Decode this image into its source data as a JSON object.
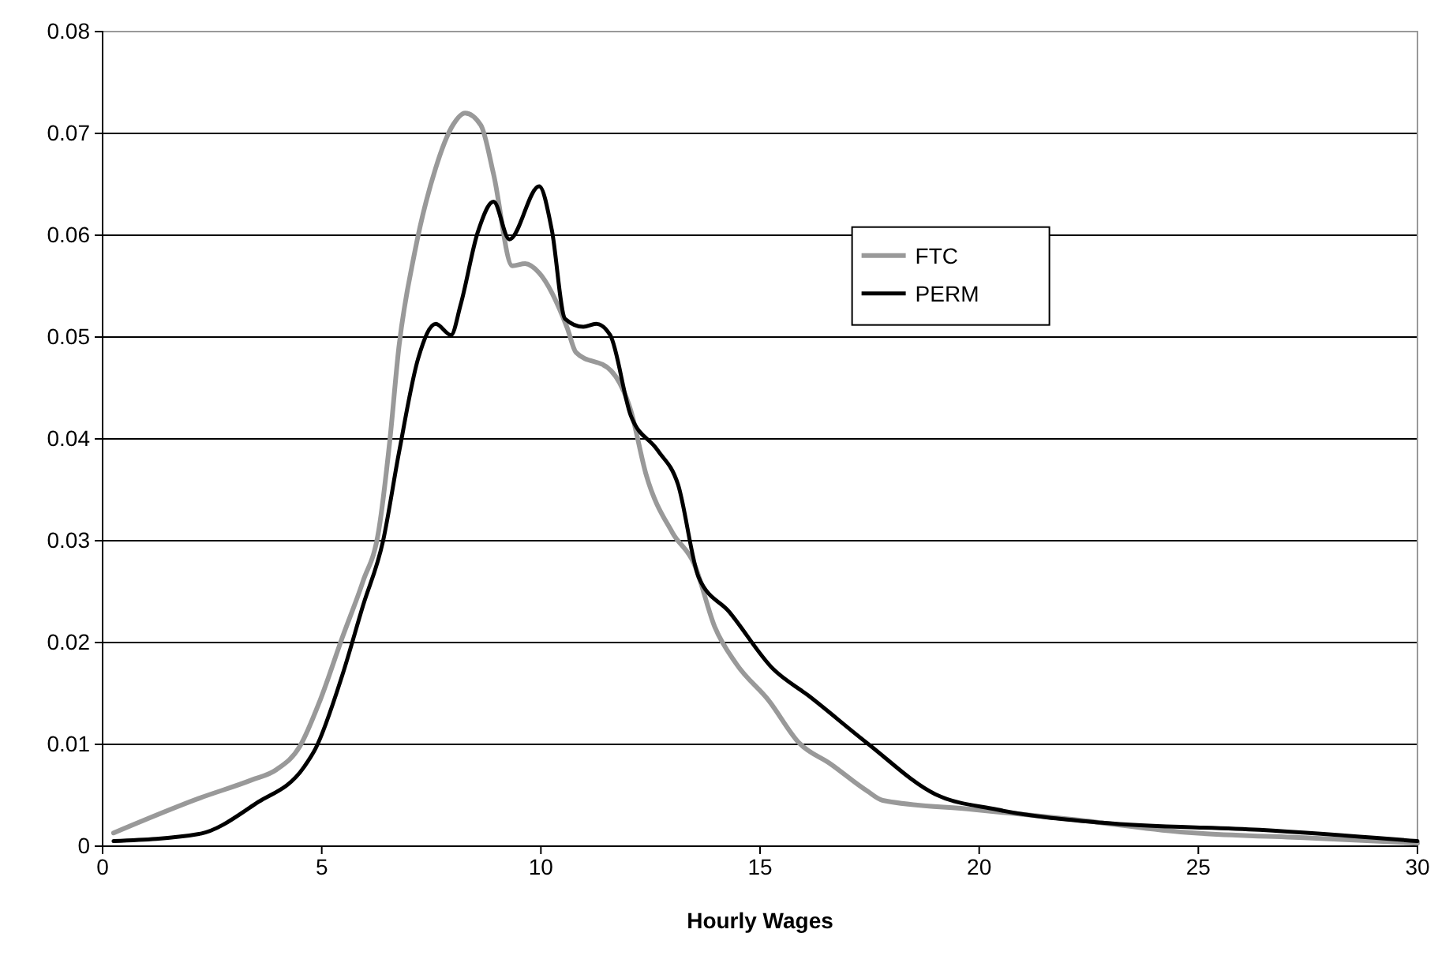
{
  "chart_data": {
    "type": "line",
    "xlabel": "Hourly Wages",
    "xlim": [
      0,
      30
    ],
    "xticks": [
      0,
      5,
      10,
      15,
      20,
      25,
      30
    ],
    "ylim": [
      0,
      0.08
    ],
    "yticks": [
      0,
      0.01,
      0.02,
      0.03,
      0.04,
      0.05,
      0.06,
      0.07,
      0.08
    ],
    "grid": "y",
    "legend": "top right",
    "marker": "none",
    "line_style": "solid",
    "series": [
      {
        "name": "FTC",
        "color": "#999999",
        "x": [
          0.25,
          2.2,
          3.4,
          3.96,
          4.5,
          4.96,
          5.47,
          5.94,
          6.3,
          6.55,
          6.76,
          7.12,
          7.6,
          7.99,
          8.27,
          8.63,
          8.92,
          9.35,
          9.64,
          9.96,
          10.6,
          10.8,
          11.6,
          12.05,
          12.4,
          13.0,
          13.5,
          13.97,
          14.46,
          15.2,
          15.9,
          16.6,
          17.45,
          17.8,
          19.86,
          22.2,
          24.6,
          27.6,
          30
        ],
        "values": [
          0.0013,
          0.0047,
          0.0065,
          0.0075,
          0.0098,
          0.0143,
          0.0205,
          0.026,
          0.031,
          0.0397,
          0.049,
          0.0583,
          0.0666,
          0.0708,
          0.072,
          0.0708,
          0.066,
          0.057,
          0.0572,
          0.0563,
          0.0509,
          0.0485,
          0.0467,
          0.0428,
          0.0365,
          0.0308,
          0.0277,
          0.0215,
          0.0179,
          0.0143,
          0.0101,
          0.0081,
          0.0054,
          0.0045,
          0.0036,
          0.0026,
          0.0014,
          0.0008,
          0.0003
        ]
      },
      {
        "name": "PERM",
        "color": "#000000",
        "x": [
          0.25,
          2.2,
          3.5,
          4.6,
          4.86,
          5.47,
          5.94,
          6.4,
          6.76,
          7.2,
          7.6,
          7.95,
          8.17,
          8.56,
          8.92,
          9.28,
          9.96,
          10.25,
          10.55,
          10.97,
          11.26,
          11.58,
          12.05,
          12.66,
          13.13,
          13.6,
          14.3,
          15.3,
          16.1,
          17.45,
          19.0,
          20.4,
          22.8,
          26.4,
          30
        ],
        "values": [
          0.0005,
          0.0012,
          0.0042,
          0.0078,
          0.0096,
          0.0168,
          0.0236,
          0.03,
          0.0386,
          0.0479,
          0.0513,
          0.0502,
          0.0532,
          0.0603,
          0.0633,
          0.0596,
          0.0648,
          0.0605,
          0.0518,
          0.051,
          0.0513,
          0.0502,
          0.0423,
          0.0389,
          0.0355,
          0.0264,
          0.023,
          0.0174,
          0.0148,
          0.0101,
          0.0051,
          0.0036,
          0.0023,
          0.0016,
          0.0005
        ]
      }
    ]
  }
}
